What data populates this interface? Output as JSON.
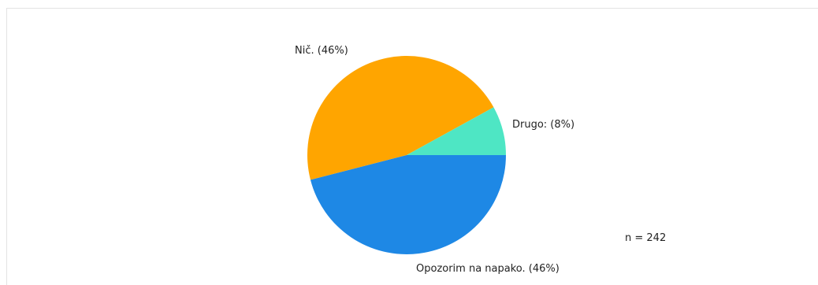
{
  "chart_data": {
    "type": "pie",
    "slices": [
      {
        "label": "Opozorim na napako. (46%)",
        "value": 46,
        "color": "#1e88e5"
      },
      {
        "label": "Nič. (46%)",
        "value": 46,
        "color": "#ffa500"
      },
      {
        "label": "Drugo: (8%)",
        "value": 8,
        "color": "#4ee6c4"
      }
    ],
    "annotation": "n = 242"
  }
}
